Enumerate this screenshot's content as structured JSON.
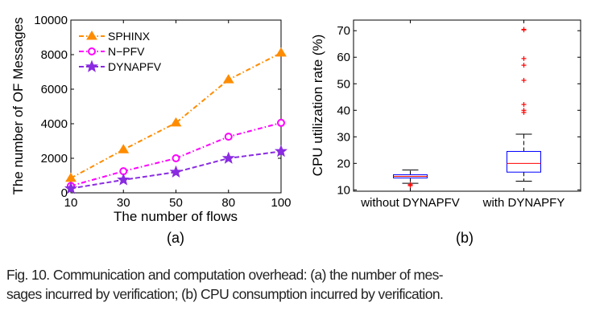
{
  "chart_data": [
    {
      "type": "line",
      "panel_label": "(a)",
      "title": "",
      "xlabel": "The number of flows",
      "ylabel": "The number of OF Messages",
      "x": [
        10,
        30,
        50,
        80,
        100
      ],
      "x_tick_labels": [
        "10",
        "30",
        "50",
        "80",
        "100"
      ],
      "x_scale": "categorical",
      "ylim": [
        0,
        10000
      ],
      "y_ticks": [
        0,
        2000,
        4000,
        6000,
        8000,
        10000
      ],
      "y_tick_labels": [
        "0",
        "2000",
        "4000",
        "6000",
        "8000",
        "10000"
      ],
      "grid": false,
      "legend_position": "top-left",
      "series": [
        {
          "name": "SPHINX",
          "values": [
            850,
            2500,
            4050,
            6550,
            8100
          ],
          "color": "#ff8c00",
          "marker": "triangle",
          "linestyle": "dash-dot"
        },
        {
          "name": "N−PFV",
          "values": [
            400,
            1250,
            2000,
            3250,
            4050
          ],
          "color": "#ff00ff",
          "marker": "circle",
          "linestyle": "dash-dot"
        },
        {
          "name": "DYNAPFV",
          "values": [
            250,
            750,
            1200,
            2000,
            2400
          ],
          "color": "#8a2be2",
          "marker": "star",
          "linestyle": "dashed"
        }
      ]
    },
    {
      "type": "box",
      "panel_label": "(b)",
      "title": "",
      "xlabel": "",
      "ylabel": "CPU utilization rate (%)",
      "categories": [
        "without DYNAPFV",
        "with DYNAPFY"
      ],
      "ylim": [
        9.5,
        74
      ],
      "y_ticks": [
        10,
        20,
        30,
        40,
        50,
        60,
        70
      ],
      "y_tick_labels": [
        "10",
        "20",
        "30",
        "40",
        "50",
        "60",
        "70"
      ],
      "grid": false,
      "box_color": "#0000ff",
      "median_color": "#ff0000",
      "outlier_color": "#ff0000",
      "boxes": [
        {
          "name": "without DYNAPFV",
          "whisker_low": 12.5,
          "q1": 14.5,
          "median": 15.1,
          "q3": 15.7,
          "whisker_high": 17.5,
          "outliers": [
            12.0,
            11.6
          ]
        },
        {
          "name": "with DYNAPFY",
          "whisker_low": 13.3,
          "q1": 16.7,
          "median": 20.0,
          "q3": 24.5,
          "whisker_high": 31.0,
          "outliers": [
            70.5,
            70.3,
            59.5,
            57.0,
            51.3,
            42.2,
            40.0,
            39.2
          ]
        }
      ]
    }
  ],
  "caption": {
    "line1": "Fig. 10. Communication and computation overhead: (a) the number of mes-",
    "line2": "sages incurred by verification; (b) CPU consumption incurred by verification."
  }
}
